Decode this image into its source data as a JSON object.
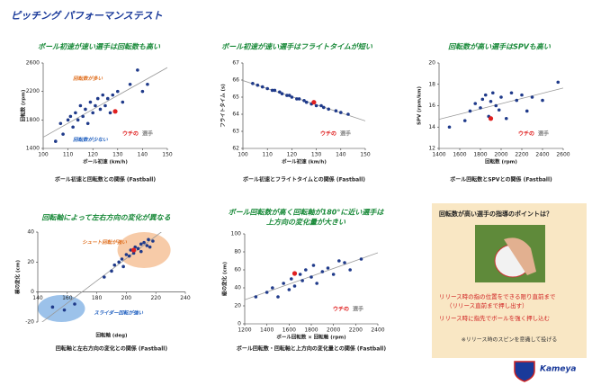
{
  "title": "ピッチング パフォーマンステスト",
  "chart_data": [
    {
      "type": "scatter",
      "title": [
        "ボール初速が速い選手は回転数も高い"
      ],
      "x_label": "ボール初速 (km/h)",
      "y_label": "回転数 (rpm)",
      "caption": "ボール初速と回転数との関係 (Fastball)",
      "xlim": [
        100,
        150
      ],
      "xticks": [
        100,
        110,
        120,
        130,
        140,
        150
      ],
      "ylim": [
        1400,
        2600
      ],
      "yticks": [
        1400,
        1800,
        2200,
        2600
      ],
      "trendline": true,
      "legend": "lower right",
      "series": [
        {
          "name": "選手",
          "color": "#1f3a8a",
          "label_color": "#888888",
          "x": [
            105,
            107,
            108,
            110,
            111,
            112,
            113,
            114,
            115,
            116,
            117,
            118,
            119,
            120,
            121,
            122,
            123,
            124,
            125,
            126,
            127,
            128,
            130,
            132,
            135,
            138,
            140,
            142
          ],
          "y": [
            1500,
            1750,
            1600,
            1800,
            1850,
            1700,
            1900,
            1800,
            2000,
            1850,
            1950,
            1750,
            2050,
            1900,
            2000,
            2100,
            1950,
            2150,
            2000,
            2100,
            1900,
            2150,
            2200,
            2050,
            2300,
            2500,
            2200,
            2300
          ]
        },
        {
          "name": "ウチの",
          "color": "#e02020",
          "label_color": "#e02020",
          "x": [
            129
          ],
          "y": [
            1920
          ]
        }
      ],
      "annotations": [
        {
          "text": "回転数が多い",
          "color": "#e07020",
          "x": 112,
          "y": 2380
        },
        {
          "text": "回転数が少ない",
          "color": "#2060c0",
          "x": 112,
          "y": 1520
        }
      ]
    },
    {
      "type": "scatter",
      "title": [
        "ボール初速が速い選手はフライトタイムが短い"
      ],
      "x_label": "ボール初速 (km/h)",
      "y_label": "フライトタイム (s)",
      "caption": "ボール初速とフライトタイムとの関係 (Fastball)",
      "xlim": [
        100,
        150
      ],
      "xticks": [
        100,
        110,
        120,
        130,
        140,
        150
      ],
      "ylim": [
        62,
        67
      ],
      "yticks": [
        62,
        63,
        64,
        65,
        66,
        67
      ],
      "trendline": true,
      "legend": "lower right",
      "series": [
        {
          "name": "選手",
          "color": "#1f3a8a",
          "label_color": "#888888",
          "x": [
            104,
            106,
            108,
            110,
            112,
            113,
            115,
            116,
            118,
            119,
            120,
            122,
            123,
            125,
            126,
            128,
            130,
            132,
            133,
            135,
            138,
            140,
            143
          ],
          "y": [
            65.8,
            65.7,
            65.6,
            65.5,
            65.4,
            65.4,
            65.3,
            65.2,
            65.1,
            65.1,
            65.0,
            64.9,
            64.9,
            64.8,
            64.7,
            64.6,
            64.5,
            64.5,
            64.4,
            64.3,
            64.2,
            64.1,
            64.0
          ]
        },
        {
          "name": "ウチの",
          "color": "#e02020",
          "label_color": "#e02020",
          "x": [
            129
          ],
          "y": [
            64.7
          ]
        }
      ]
    },
    {
      "type": "scatter",
      "title": [
        "回転数が高い選手はSPVも高い"
      ],
      "x_label": "回転数 (rpm)",
      "y_label": "SPV (rpm/km)",
      "caption": "ボール回転数とSPVとの関係 (Fastball)",
      "xlim": [
        1400,
        2600
      ],
      "xticks": [
        1400,
        1600,
        1800,
        2000,
        2200,
        2400,
        2600
      ],
      "ylim": [
        12,
        20
      ],
      "yticks": [
        12,
        14,
        16,
        18,
        20
      ],
      "trendline": true,
      "legend": "lower right",
      "series": [
        {
          "name": "選手",
          "color": "#1f3a8a",
          "label_color": "#888888",
          "x": [
            1500,
            1650,
            1700,
            1750,
            1800,
            1820,
            1850,
            1880,
            1900,
            1920,
            1950,
            1980,
            2000,
            2050,
            2100,
            2150,
            2200,
            2250,
            2300,
            2400,
            2550
          ],
          "y": [
            14.0,
            14.6,
            15.5,
            16.2,
            15.8,
            16.6,
            17.0,
            15.0,
            16.4,
            17.2,
            16.0,
            15.6,
            16.8,
            14.8,
            17.2,
            16.5,
            17.0,
            15.5,
            16.8,
            16.5,
            18.2
          ]
        },
        {
          "name": "ウチの",
          "color": "#e02020",
          "label_color": "#e02020",
          "x": [
            1900
          ],
          "y": [
            14.8
          ]
        }
      ]
    },
    {
      "type": "scatter",
      "title": [
        "回転軸によって左右方向の変化が異なる"
      ],
      "x_label": "回転軸 (deg)",
      "y_label": "横の変化 (cm)",
      "caption": "回転軸と左右方向の変化との関係 (Fastball)",
      "xlim": [
        140,
        240
      ],
      "xticks": [
        140,
        160,
        180,
        200,
        220,
        240
      ],
      "ylim": [
        -20,
        40
      ],
      "yticks": [
        -20,
        0,
        20,
        40
      ],
      "trendline": true,
      "series": [
        {
          "name": "選手",
          "color": "#1f3a8a",
          "label_color": "#888888",
          "x": [
            150,
            158,
            165,
            185,
            190,
            192,
            195,
            197,
            198,
            200,
            202,
            203,
            205,
            206,
            208,
            210,
            210,
            212,
            214,
            215,
            216,
            218
          ],
          "y": [
            -10,
            -12,
            -8,
            10,
            14,
            18,
            20,
            22,
            17,
            25,
            24,
            28,
            26,
            30,
            29,
            32,
            27,
            33,
            31,
            35,
            30,
            34
          ]
        },
        {
          "name": "ウチの",
          "color": "#e02020",
          "label_color": "#e02020",
          "x": [
            205
          ],
          "y": [
            28
          ]
        }
      ],
      "regions": [
        {
          "color": "#f0a060",
          "x": [
            194,
            230
          ],
          "y": [
            16,
            40
          ]
        },
        {
          "color": "#4a90d8",
          "x": [
            140,
            172
          ],
          "y": [
            -20,
            -2
          ]
        }
      ],
      "annotations": [
        {
          "text": "シュート回転が強い",
          "color": "#e07020",
          "x": 170,
          "y": 33
        },
        {
          "text": "スライダー回転が強い",
          "color": "#2060c0",
          "x": 178,
          "y": -14
        }
      ]
    },
    {
      "type": "scatter",
      "title": [
        "ボール回転数が高く回転軸が180°に近い選手は",
        "上方向の変化量が大きい"
      ],
      "x_label": "ボール回転数 × 回転軸 (rpm)",
      "y_label": "縦の変化 (cm)",
      "caption": "ボール回転数・回転軸と上方向の変化量との関係 (Fastball)",
      "xlim": [
        1200,
        2400
      ],
      "xticks": [
        1200,
        1400,
        1600,
        1800,
        2000,
        2200,
        2400
      ],
      "ylim": [
        0,
        100
      ],
      "yticks": [
        0,
        20,
        40,
        60,
        80,
        100
      ],
      "trendline": true,
      "legend": "lower right",
      "series": [
        {
          "name": "選手",
          "color": "#1f3a8a",
          "label_color": "#888888",
          "x": [
            1300,
            1400,
            1450,
            1500,
            1550,
            1600,
            1620,
            1650,
            1700,
            1720,
            1750,
            1800,
            1820,
            1850,
            1900,
            1950,
            2000,
            2050,
            2100,
            2150,
            2250
          ],
          "y": [
            30,
            35,
            40,
            30,
            45,
            38,
            50,
            42,
            55,
            48,
            60,
            52,
            65,
            45,
            58,
            62,
            55,
            70,
            68,
            60,
            72
          ]
        },
        {
          "name": "ウチの",
          "color": "#e02020",
          "label_color": "#e02020",
          "x": [
            1650
          ],
          "y": [
            56
          ]
        }
      ]
    }
  ],
  "panel": {
    "title": "回転数が高い選手の指導のポイントは？",
    "bullets": [
      "リリース時の指の位置をできる限り直前まで",
      "（リリース直前まで押し出す）",
      "リリース時に指先でボールを強く押し込む"
    ],
    "note": "※リリース時のスピンを意識して投げる"
  },
  "logo_text": "Kameya"
}
